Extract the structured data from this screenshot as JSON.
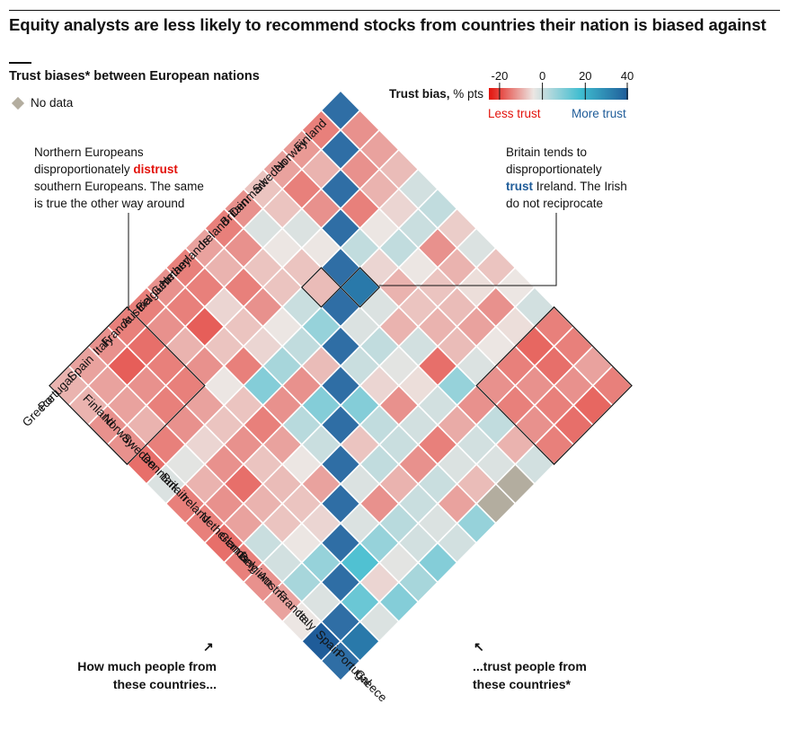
{
  "title": "Equity analysts are less likely to recommend stocks from countries their nation is biased against",
  "subtitle": "Trust biases* between European nations",
  "legend": {
    "no_data_label": "No data",
    "title_bold": "Trust bias,",
    "title_unit": "% pts",
    "ticks": [
      "-20",
      "0",
      "20",
      "40"
    ],
    "less_label": "Less trust",
    "more_label": "More trust",
    "colors": {
      "negative": "#e3120b",
      "neutral": "#ece6e3",
      "positive_light": "#3fbdd0",
      "positive_dark": "#1f5c99",
      "no_data": "#b3ad9f"
    }
  },
  "annotations": {
    "left_1": "Northern Europeans",
    "left_2": "disproportionately",
    "left_emph": "distrust",
    "left_3": "southern Europeans. The same",
    "left_4": "is true the other way around",
    "right_1": "Britain tends to",
    "right_2": "disproportionately",
    "right_emph": "trust",
    "right_3": "Ireland. The Irish",
    "right_4": "do not reciprocate"
  },
  "footer": {
    "left_1": "How much people from",
    "left_2": "these countries...",
    "right_1": "...trust people from",
    "right_2": "these countries*",
    "arrow_left": "↗",
    "arrow_right": "↖"
  },
  "chart_data": {
    "type": "heatmap",
    "title": "Trust biases* between European nations",
    "countries": [
      "Finland",
      "Norway",
      "Sweden",
      "Denmark",
      "Britain",
      "Ireland",
      "Netherlands",
      "Germany",
      "Belgium",
      "Austria",
      "France",
      "Italy",
      "Spain",
      "Portugal",
      "Greece"
    ],
    "row_axis_label": "How much people from these countries...",
    "col_axis_label": "...trust people from these countries*",
    "value_unit": "% pts",
    "color_range": [
      -25,
      40
    ],
    "no_data_value": null,
    "values": [
      [
        null,
        -10,
        -8,
        -5,
        3,
        5,
        -3,
        2,
        -4,
        0,
        3,
        -12,
        -12,
        -8,
        -12
      ],
      [
        -12,
        null,
        -10,
        -6,
        -2,
        4,
        -10,
        -6,
        -1,
        -10,
        -1,
        -15,
        -14,
        -10,
        -15
      ],
      [
        -9,
        -6,
        null,
        -12,
        0,
        5,
        0,
        -4,
        -5,
        -8,
        0,
        -12,
        -10,
        -12,
        -14
      ],
      [
        -8,
        -12,
        -10,
        null,
        5,
        -2,
        -6,
        -4,
        -6,
        -5,
        2,
        -10,
        -12,
        -10,
        -12
      ],
      [
        -4,
        -4,
        2,
        0,
        null,
        34,
        2,
        -6,
        3,
        -14,
        10,
        -10,
        5,
        -6,
        3
      ],
      [
        -10,
        2,
        0,
        -4,
        -5,
        null,
        2,
        5,
        1,
        -1,
        3,
        -7,
        3,
        2,
        null
      ],
      [
        -12,
        -10,
        -4,
        -4,
        4,
        10,
        null,
        4,
        -2,
        -10,
        3,
        -12,
        2,
        -5,
        null
      ],
      [
        -8,
        -6,
        -12,
        -10,
        0,
        5,
        -5,
        null,
        12,
        5,
        4,
        -10,
        4,
        -8,
        10
      ],
      [
        -12,
        -12,
        -2,
        -4,
        -2,
        8,
        -10,
        12,
        null,
        -4,
        5,
        -6,
        4,
        2,
        3
      ],
      [
        -10,
        -12,
        -16,
        -4,
        -12,
        12,
        -10,
        6,
        4,
        null,
        2,
        -10,
        6,
        3,
        12
      ],
      [
        -12,
        -10,
        -6,
        -10,
        0,
        -4,
        -12,
        -8,
        0,
        -8,
        null,
        2,
        10,
        1,
        8
      ],
      [
        -12,
        -14,
        -12,
        -12,
        -8,
        -4,
        -10,
        -4,
        -5,
        -4,
        -2,
        null,
        18,
        -2,
        12
      ],
      [
        -10,
        -16,
        -10,
        -12,
        -10,
        -2,
        -10,
        -14,
        -6,
        -4,
        0,
        10,
        null,
        15,
        2
      ],
      [
        -8,
        -8,
        -8,
        -6,
        -12,
        1,
        -6,
        -10,
        -8,
        4,
        3,
        8,
        2,
        null,
        34
      ],
      [
        -6,
        -6,
        -10,
        -10,
        -14,
        2,
        -12,
        -12,
        -14,
        -12,
        -10,
        -8,
        0,
        40,
        null
      ]
    ],
    "highlight_groups": [
      {
        "rows": [
          "Finland",
          "Norway",
          "Sweden",
          "Denmark"
        ],
        "cols": [
          "Italy",
          "Spain",
          "Portugal",
          "Greece"
        ]
      },
      {
        "rows": [
          "Italy",
          "Spain",
          "Portugal",
          "Greece"
        ],
        "cols": [
          "Finland",
          "Norway",
          "Sweden",
          "Denmark"
        ]
      }
    ],
    "highlight_cells": [
      {
        "row": "Britain",
        "col": "Ireland"
      },
      {
        "row": "Ireland",
        "col": "Britain"
      }
    ]
  }
}
